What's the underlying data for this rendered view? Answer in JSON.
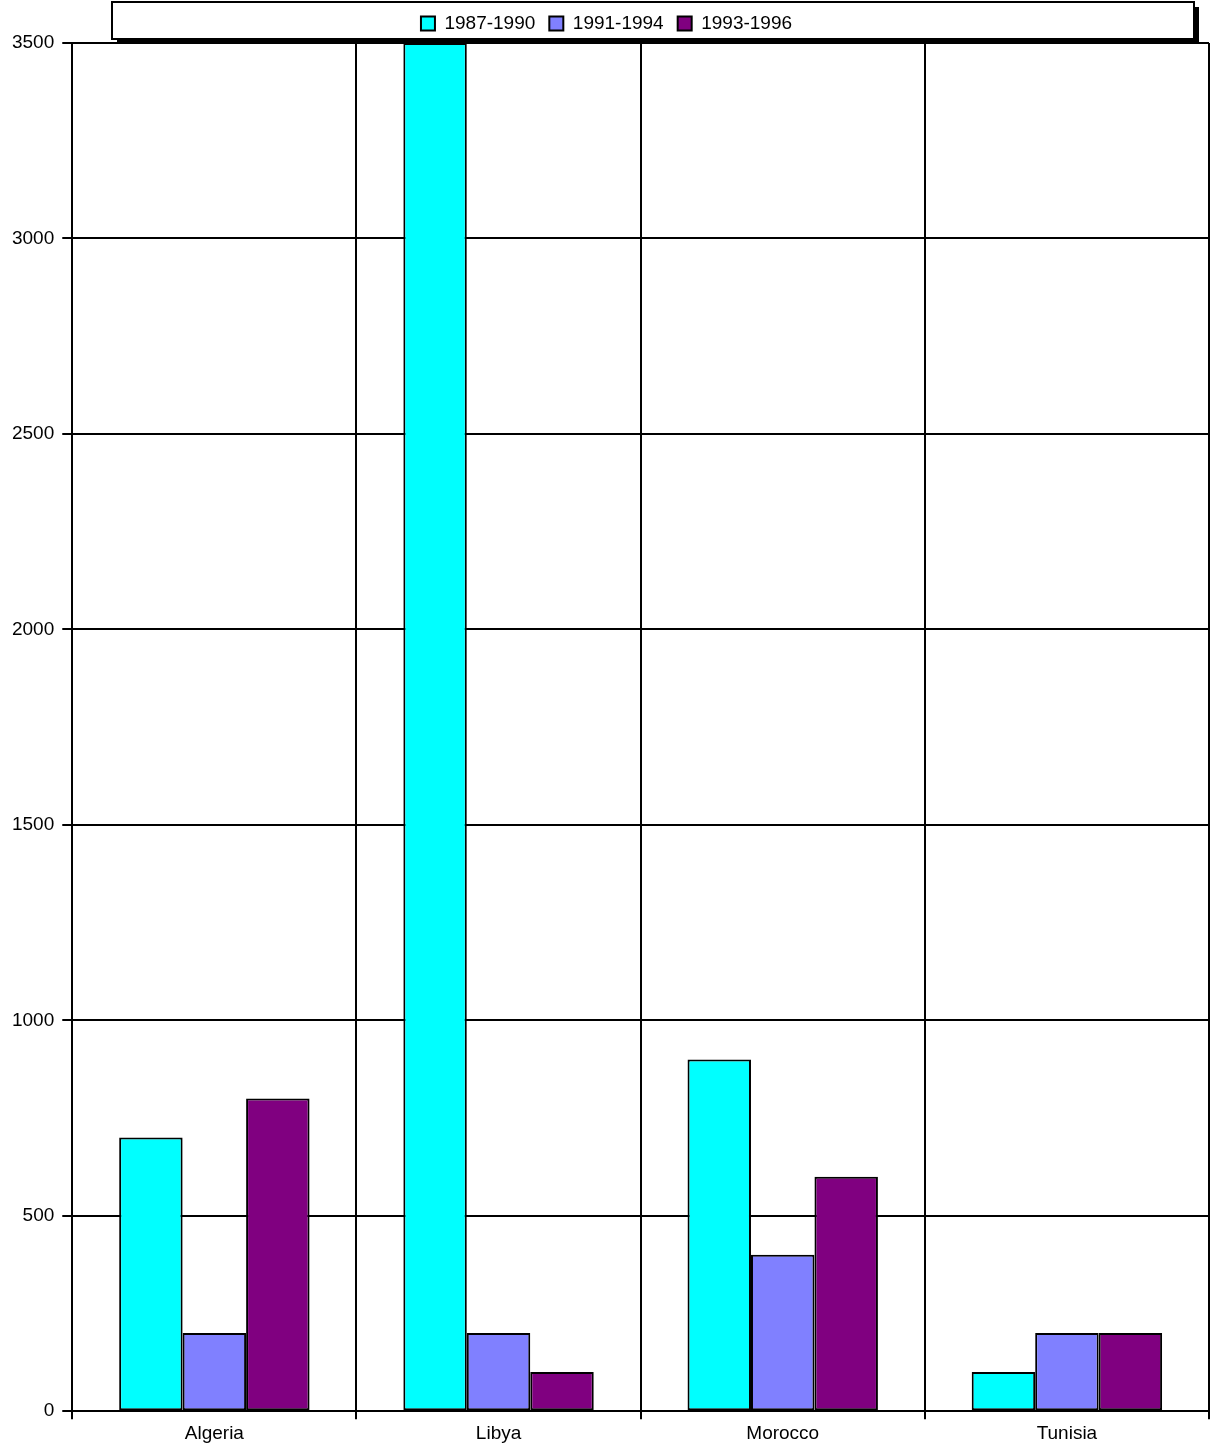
{
  "chart_data": {
    "type": "bar",
    "categories": [
      "Algeria",
      "Libya",
      "Morocco",
      "Tunisia"
    ],
    "series": [
      {
        "name": "1987-1990",
        "color": "#00ffff",
        "values": [
          700,
          3500,
          900,
          100
        ]
      },
      {
        "name": "1991-1994",
        "color": "#8080ff",
        "values": [
          200,
          200,
          400,
          200
        ]
      },
      {
        "name": "1993-1996",
        "color": "#800080",
        "values": [
          800,
          100,
          600,
          200
        ]
      }
    ],
    "ylim": [
      0,
      3500
    ],
    "yticks": [
      0,
      500,
      1000,
      1500,
      2000,
      2500,
      3000,
      3500
    ],
    "grid": true,
    "legend": "top"
  }
}
